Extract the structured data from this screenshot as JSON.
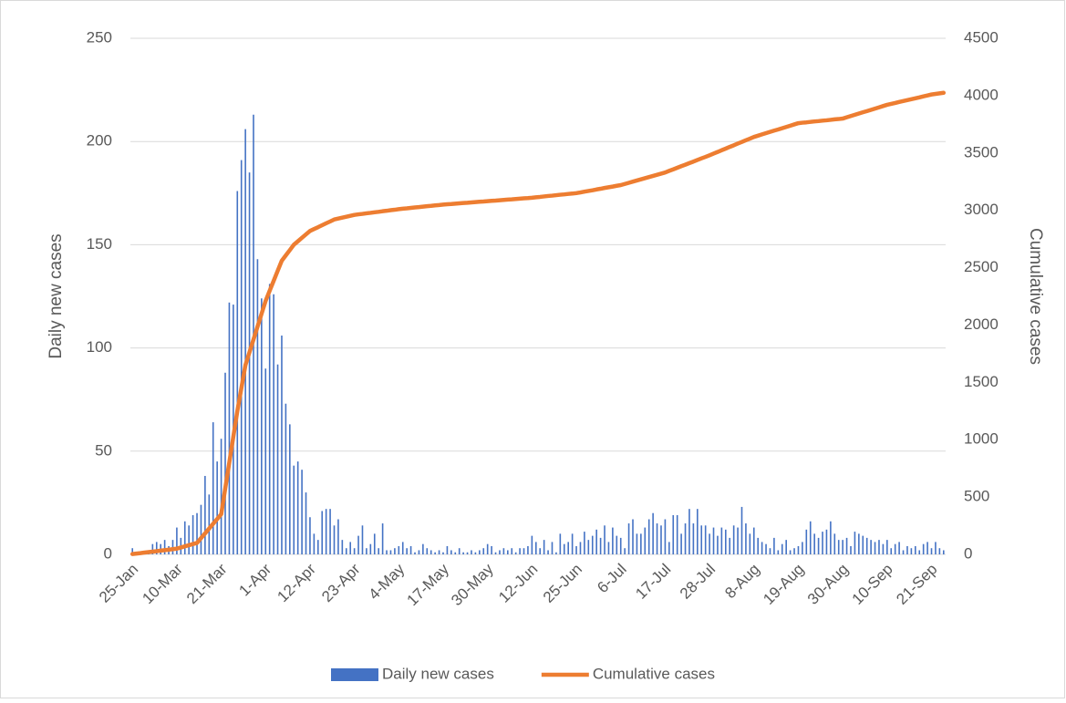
{
  "chart_data": {
    "type": "bar",
    "y_label": "Daily new cases",
    "y2_label": "Cumulative cases",
    "categories": [
      "25-Jan",
      null,
      null,
      null,
      null,
      null,
      null,
      null,
      null,
      null,
      null,
      "10-Mar",
      null,
      null,
      null,
      null,
      null,
      null,
      null,
      null,
      null,
      null,
      "21-Mar",
      null,
      null,
      null,
      null,
      null,
      null,
      null,
      null,
      null,
      null,
      "1-Apr",
      null,
      null,
      null,
      null,
      null,
      null,
      null,
      null,
      null,
      null,
      "12-Apr",
      null,
      null,
      null,
      null,
      null,
      null,
      null,
      null,
      null,
      null,
      "23-Apr",
      null,
      null,
      null,
      null,
      null,
      null,
      null,
      null,
      null,
      null,
      "4-May",
      null,
      null,
      null,
      null,
      null,
      null,
      null,
      null,
      null,
      null,
      "17-May",
      null,
      null,
      null,
      null,
      null,
      null,
      null,
      null,
      null,
      null,
      "30-May",
      null,
      null,
      null,
      null,
      null,
      null,
      null,
      null,
      null,
      null,
      "12-Jun",
      null,
      null,
      null,
      null,
      null,
      null,
      null,
      null,
      null,
      null,
      "25-Jun",
      null,
      null,
      null,
      null,
      null,
      null,
      null,
      null,
      null,
      null,
      "6-Jul",
      null,
      null,
      null,
      null,
      null,
      null,
      null,
      null,
      null,
      null,
      "17-Jul",
      null,
      null,
      null,
      null,
      null,
      null,
      null,
      null,
      null,
      null,
      "28-Jul",
      null,
      null,
      null,
      null,
      null,
      null,
      null,
      null,
      null,
      null,
      "8-Aug",
      null,
      null,
      null,
      null,
      null,
      null,
      null,
      null,
      null,
      null,
      "19-Aug",
      null,
      null,
      null,
      null,
      null,
      null,
      null,
      null,
      null,
      null,
      "30-Aug",
      null,
      null,
      null,
      null,
      null,
      null,
      null,
      null,
      null,
      null,
      "10-Sep",
      null,
      null,
      null,
      null,
      null,
      null,
      null,
      null,
      null,
      null,
      "21-Sep",
      null,
      null,
      null
    ],
    "series": [
      {
        "name": "Daily new cases",
        "type": "bar",
        "axis": "y",
        "color": "#4472c4",
        "values": [
          3,
          0,
          1,
          1,
          2,
          5,
          6,
          5,
          7,
          4,
          7,
          13,
          8,
          16,
          14,
          19,
          20,
          24,
          38,
          29,
          64,
          45,
          56,
          88,
          122,
          121,
          176,
          191,
          206,
          185,
          213,
          143,
          124,
          90,
          131,
          126,
          92,
          106,
          73,
          63,
          43,
          45,
          41,
          30,
          18,
          10,
          7,
          21,
          22,
          22,
          14,
          17,
          7,
          3,
          6,
          3,
          9,
          14,
          3,
          5,
          10,
          3,
          15,
          2,
          2,
          3,
          4,
          6,
          3,
          4,
          1,
          2,
          5,
          3,
          2,
          1,
          2,
          1,
          4,
          2,
          1,
          3,
          1,
          1,
          2,
          1,
          2,
          3,
          5,
          4,
          1,
          2,
          3,
          2,
          3,
          1,
          3,
          3,
          4,
          9,
          6,
          3,
          7,
          2,
          6,
          1,
          10,
          5,
          6,
          10,
          4,
          6,
          11,
          7,
          9,
          12,
          8,
          14,
          6,
          13,
          9,
          8,
          3,
          15,
          17,
          10,
          10,
          13,
          17,
          20,
          15,
          14,
          17,
          6,
          19,
          19,
          10,
          15,
          22,
          15,
          22,
          14,
          14,
          10,
          13,
          9,
          13,
          12,
          8,
          14,
          13,
          23,
          15,
          10,
          13,
          8,
          6,
          5,
          3,
          8,
          2,
          5,
          7,
          2,
          3,
          4,
          6,
          12,
          16,
          10,
          8,
          11,
          12,
          16,
          10,
          7,
          7,
          8,
          4,
          11,
          10,
          9,
          8,
          7,
          6,
          7,
          5,
          7,
          3,
          5,
          6,
          2,
          4,
          3,
          4,
          2,
          5,
          6,
          3,
          6,
          3,
          2
        ]
      },
      {
        "name": "Cumulative cases",
        "type": "line",
        "axis": "y2",
        "color": "#ed7d31",
        "values": [
          3,
          7,
          11,
          16,
          20,
          24,
          28,
          33,
          37,
          41,
          46,
          50,
          60,
          70,
          80,
          90,
          100,
          142,
          183,
          225,
          267,
          308,
          350,
          575,
          800,
          1025,
          1250,
          1450,
          1650,
          1762,
          1874,
          1986,
          2098,
          2210,
          2298,
          2385,
          2473,
          2560,
          2607,
          2653,
          2700,
          2730,
          2760,
          2790,
          2820,
          2837,
          2853,
          2870,
          2887,
          2903,
          2920,
          2928,
          2936,
          2944,
          2952,
          2960,
          2965,
          2969,
          2974,
          2978,
          2983,
          2987,
          2992,
          2996,
          3001,
          3005,
          3010,
          3014,
          3017,
          3021,
          3025,
          3028,
          3032,
          3036,
          3039,
          3043,
          3046,
          3050,
          3053,
          3055,
          3058,
          3061,
          3064,
          3066,
          3069,
          3072,
          3075,
          3077,
          3080,
          3083,
          3085,
          3088,
          3091,
          3094,
          3096,
          3099,
          3102,
          3105,
          3107,
          3110,
          3114,
          3117,
          3121,
          3125,
          3128,
          3132,
          3136,
          3139,
          3143,
          3146,
          3150,
          3156,
          3163,
          3169,
          3175,
          3182,
          3188,
          3195,
          3201,
          3207,
          3214,
          3220,
          3230,
          3240,
          3250,
          3260,
          3270,
          3280,
          3290,
          3300,
          3310,
          3320,
          3330,
          3344,
          3357,
          3371,
          3385,
          3398,
          3412,
          3425,
          3439,
          3453,
          3466,
          3480,
          3495,
          3509,
          3524,
          3538,
          3553,
          3567,
          3582,
          3596,
          3611,
          3625,
          3640,
          3651,
          3662,
          3673,
          3684,
          3695,
          3705,
          3716,
          3727,
          3738,
          3749,
          3760,
          3764,
          3767,
          3771,
          3775,
          3778,
          3782,
          3785,
          3789,
          3793,
          3796,
          3800,
          3811,
          3822,
          3833,
          3844,
          3855,
          3865,
          3876,
          3887,
          3898,
          3909,
          3920,
          3928,
          3936,
          3945,
          3953,
          3961,
          3969,
          3977,
          3985,
          3994,
          4002,
          4010,
          4015,
          4020,
          4025
        ]
      }
    ],
    "ylim": [
      0,
      250
    ],
    "yticks": [
      0,
      50,
      100,
      150,
      200,
      250
    ],
    "y2lim": [
      0,
      4500
    ],
    "y2ticks": [
      0,
      500,
      1000,
      1500,
      2000,
      2500,
      3000,
      3500,
      4000,
      4500
    ],
    "grid": true,
    "legend": "bottom"
  }
}
